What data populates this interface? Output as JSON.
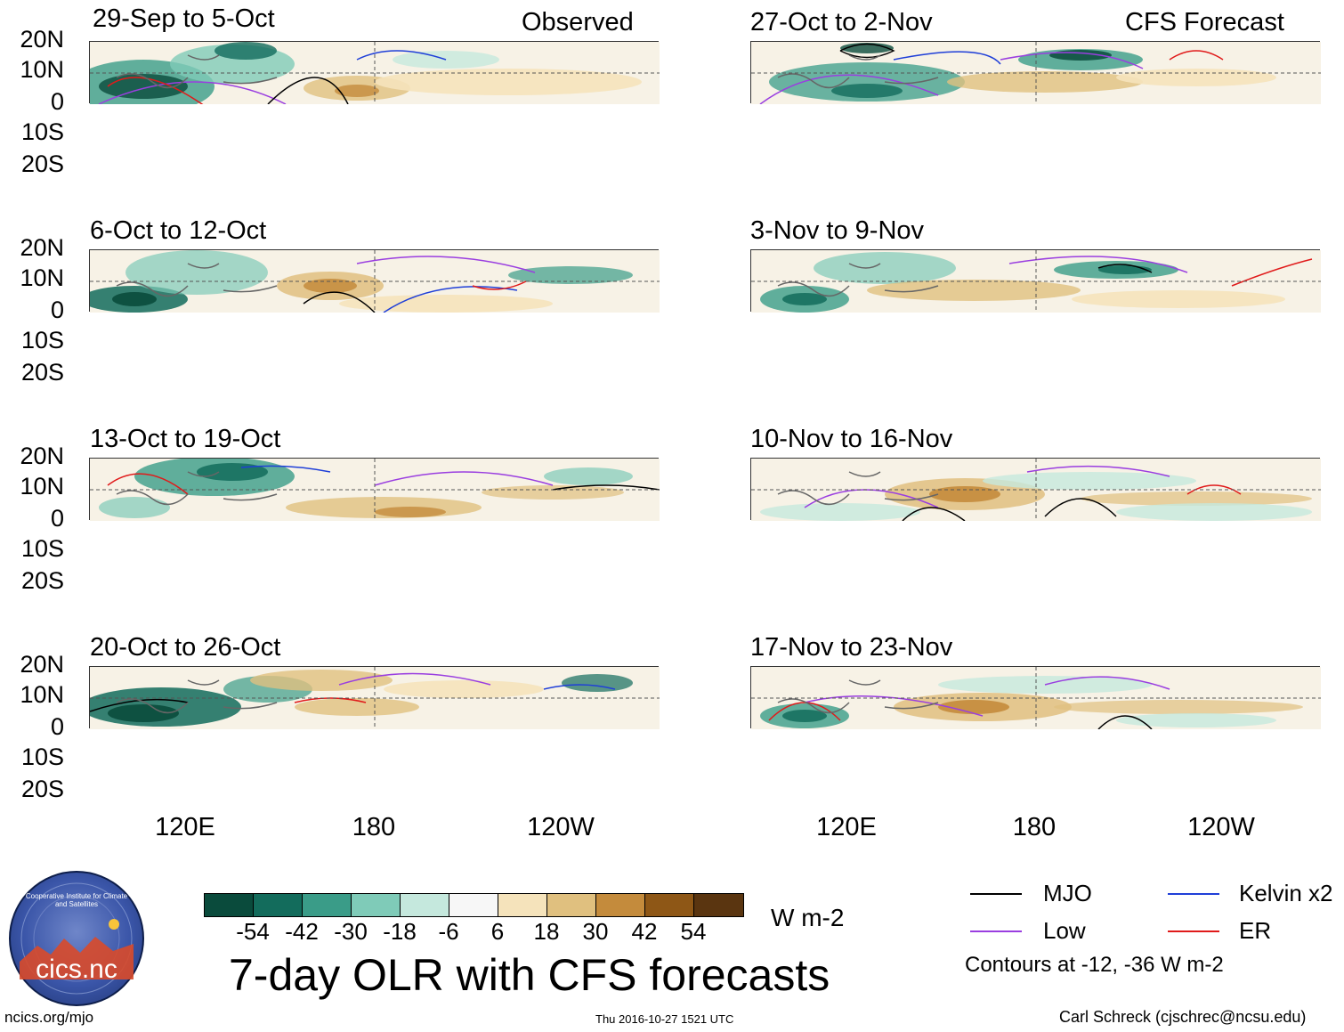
{
  "header": {
    "observed_label": "Observed",
    "forecast_label": "CFS Forecast"
  },
  "observed_panels": [
    {
      "title": "29-Sep to 5-Oct"
    },
    {
      "title": "6-Oct to 12-Oct"
    },
    {
      "title": "13-Oct to 19-Oct"
    },
    {
      "title": "20-Oct to 26-Oct"
    }
  ],
  "forecast_panels": [
    {
      "title": "27-Oct to 2-Nov"
    },
    {
      "title": "3-Nov to 9-Nov"
    },
    {
      "title": "10-Nov to 16-Nov"
    },
    {
      "title": "17-Nov to 23-Nov"
    }
  ],
  "axes": {
    "lat_labels": [
      "20N",
      "10N",
      "0",
      "10S",
      "20S"
    ],
    "lon_labels": [
      "120E",
      "180",
      "120W"
    ]
  },
  "colorbar": {
    "ticks": [
      "-54",
      "-42",
      "-30",
      "-18",
      "-6",
      "6",
      "18",
      "30",
      "42",
      "54"
    ],
    "units": "W m-2",
    "colors": [
      "#0a4b3c",
      "#136c5c",
      "#3a9c88",
      "#7fcbb8",
      "#c5e8dd",
      "#f7f7f7",
      "#f5e3bb",
      "#e0c07f",
      "#c48b3c",
      "#8e5716",
      "#5a3510"
    ]
  },
  "title": "7-day OLR with CFS forecasts",
  "legend": {
    "items": [
      {
        "label": "MJO",
        "color": "#000000"
      },
      {
        "label": "Kelvin x2",
        "color": "#1f3fd8"
      },
      {
        "label": "Low",
        "color": "#9a3ee0"
      },
      {
        "label": "ER",
        "color": "#e01a1a"
      }
    ],
    "contour_note": "Contours at -12, -36 W m-2"
  },
  "logo": {
    "text": "cics.nc",
    "ring_text": "Cooperative Institute for Climate and Satellites"
  },
  "footer": {
    "url": "ncics.org/mjo",
    "timestamp": "Thu 2016-10-27 1521 UTC",
    "author": "Carl Schreck (cjschrec@ncsu.edu)"
  }
}
